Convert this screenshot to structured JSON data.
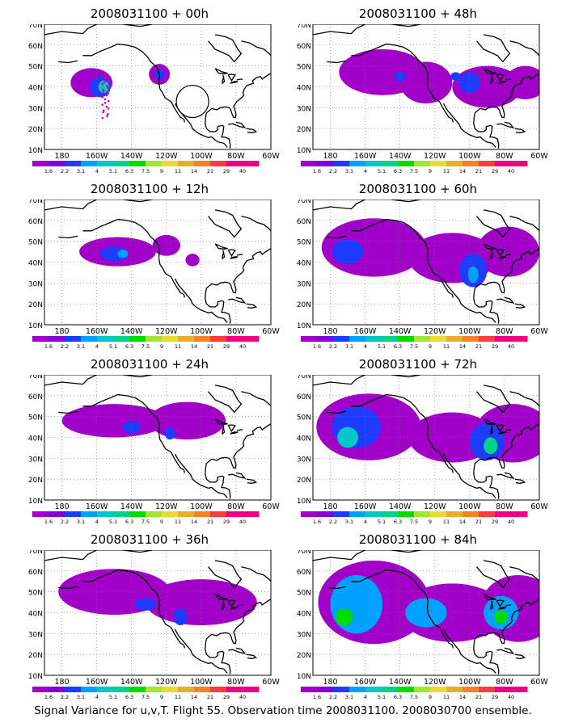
{
  "figure": {
    "caption": "Signal Variance for u,v,T. Flight 55. Observation time 2008031100. 2008030700 ensemble."
  },
  "axes": {
    "lat_labels": [
      "70N",
      "60N",
      "50N",
      "40N",
      "30N",
      "20N",
      "10N"
    ],
    "lon_labels": [
      "180",
      "160W",
      "140W",
      "120W",
      "100W",
      "80W",
      "60W"
    ]
  },
  "colorbar": {
    "levels": [
      "1.6",
      "2.2",
      "3.1",
      "4",
      "5.1",
      "6.3",
      "7.5",
      "9",
      "11",
      "14",
      "21",
      "29",
      "40"
    ],
    "colors": [
      "#a000c8",
      "#8200dc",
      "#1e3cff",
      "#00a0ff",
      "#00c8c8",
      "#00d28c",
      "#00dc00",
      "#a0e632",
      "#e6dc32",
      "#e6af2d",
      "#f08228",
      "#fa3c3c",
      "#f00082"
    ]
  },
  "panels": [
    {
      "title": "2008031100 + 00h",
      "blobs": [
        {
          "lon": -163,
          "lat": 42,
          "rx": 12,
          "ry": 7,
          "level": 0
        },
        {
          "lon": -124,
          "lat": 46,
          "rx": 6,
          "ry": 5,
          "level": 0
        },
        {
          "lon": -158,
          "lat": 40,
          "rx": 6,
          "ry": 5,
          "level": 2
        },
        {
          "lon": -156,
          "lat": 40,
          "rx": 3,
          "ry": 3,
          "level": 4
        },
        {
          "lon": -124,
          "lat": 46,
          "rx": 3,
          "ry": 2.5,
          "level": 2
        }
      ]
    },
    {
      "title": "2008031100 + 48h",
      "blobs": [
        {
          "lon": -150,
          "lat": 47,
          "rx": 25,
          "ry": 11,
          "level": 0
        },
        {
          "lon": -125,
          "lat": 42,
          "rx": 15,
          "ry": 10,
          "level": 0
        },
        {
          "lon": -90,
          "lat": 40,
          "rx": 20,
          "ry": 10,
          "level": 0
        },
        {
          "lon": -68,
          "lat": 42,
          "rx": 12,
          "ry": 8,
          "level": 0
        },
        {
          "lon": -140,
          "lat": 45,
          "rx": 3,
          "ry": 2.5,
          "level": 2
        },
        {
          "lon": -100,
          "lat": 42,
          "rx": 6,
          "ry": 5,
          "level": 2
        },
        {
          "lon": -108,
          "lat": 45,
          "rx": 3,
          "ry": 2,
          "level": 2
        }
      ]
    },
    {
      "title": "2008031100 + 12h",
      "blobs": [
        {
          "lon": -148,
          "lat": 45,
          "rx": 22,
          "ry": 7,
          "level": 0
        },
        {
          "lon": -120,
          "lat": 48,
          "rx": 8,
          "ry": 5,
          "level": 0
        },
        {
          "lon": -105,
          "lat": 41,
          "rx": 4,
          "ry": 3,
          "level": 0
        },
        {
          "lon": -150,
          "lat": 44,
          "rx": 8,
          "ry": 3.5,
          "level": 2
        },
        {
          "lon": -145,
          "lat": 44,
          "rx": 3,
          "ry": 2,
          "level": 3
        }
      ]
    },
    {
      "title": "2008031100 + 60h",
      "blobs": [
        {
          "lon": -155,
          "lat": 47,
          "rx": 30,
          "ry": 14,
          "level": 0
        },
        {
          "lon": -110,
          "lat": 42,
          "rx": 25,
          "ry": 12,
          "level": 0
        },
        {
          "lon": -78,
          "lat": 45,
          "rx": 18,
          "ry": 12,
          "level": 0
        },
        {
          "lon": -170,
          "lat": 45,
          "rx": 9,
          "ry": 6,
          "level": 2
        },
        {
          "lon": -98,
          "lat": 36,
          "rx": 8,
          "ry": 8,
          "level": 2
        },
        {
          "lon": -98,
          "lat": 34,
          "rx": 3,
          "ry": 4,
          "level": 3
        }
      ]
    },
    {
      "title": "2008031100 + 24h",
      "blobs": [
        {
          "lon": -150,
          "lat": 48,
          "rx": 30,
          "ry": 8,
          "level": 0
        },
        {
          "lon": -108,
          "lat": 48,
          "rx": 22,
          "ry": 9,
          "level": 0
        },
        {
          "lon": -140,
          "lat": 45,
          "rx": 5,
          "ry": 3,
          "level": 2
        },
        {
          "lon": -118,
          "lat": 42,
          "rx": 3,
          "ry": 3,
          "level": 2
        }
      ]
    },
    {
      "title": "2008031100 + 72h",
      "blobs": [
        {
          "lon": -158,
          "lat": 45,
          "rx": 30,
          "ry": 16,
          "level": 0
        },
        {
          "lon": -110,
          "lat": 40,
          "rx": 25,
          "ry": 12,
          "level": 0
        },
        {
          "lon": -75,
          "lat": 42,
          "rx": 22,
          "ry": 14,
          "level": 0
        },
        {
          "lon": -165,
          "lat": 45,
          "rx": 14,
          "ry": 10,
          "level": 2
        },
        {
          "lon": -90,
          "lat": 38,
          "rx": 10,
          "ry": 9,
          "level": 2
        },
        {
          "lon": -170,
          "lat": 40,
          "rx": 6,
          "ry": 5,
          "level": 4
        },
        {
          "lon": -88,
          "lat": 36,
          "rx": 4,
          "ry": 4,
          "level": 5
        }
      ]
    },
    {
      "title": "2008031100 + 36h",
      "blobs": [
        {
          "lon": -150,
          "lat": 50,
          "rx": 32,
          "ry": 11,
          "level": 0
        },
        {
          "lon": -100,
          "lat": 45,
          "rx": 32,
          "ry": 11,
          "level": 0
        },
        {
          "lon": -132,
          "lat": 44,
          "rx": 6,
          "ry": 3,
          "level": 2
        },
        {
          "lon": -112,
          "lat": 38,
          "rx": 4,
          "ry": 4,
          "level": 2
        }
      ]
    },
    {
      "title": "2008031100 + 84h",
      "blobs": [
        {
          "lon": -155,
          "lat": 45,
          "rx": 32,
          "ry": 20,
          "level": 0
        },
        {
          "lon": -110,
          "lat": 40,
          "rx": 30,
          "ry": 14,
          "level": 0
        },
        {
          "lon": -72,
          "lat": 42,
          "rx": 22,
          "ry": 16,
          "level": 0
        },
        {
          "lon": -165,
          "lat": 44,
          "rx": 15,
          "ry": 14,
          "level": 3
        },
        {
          "lon": -125,
          "lat": 40,
          "rx": 12,
          "ry": 7,
          "level": 3
        },
        {
          "lon": -82,
          "lat": 40,
          "rx": 10,
          "ry": 8,
          "level": 3
        },
        {
          "lon": -172,
          "lat": 38,
          "rx": 5,
          "ry": 4,
          "level": 6
        },
        {
          "lon": -82,
          "lat": 38,
          "rx": 4,
          "ry": 3,
          "level": 6
        }
      ]
    }
  ]
}
